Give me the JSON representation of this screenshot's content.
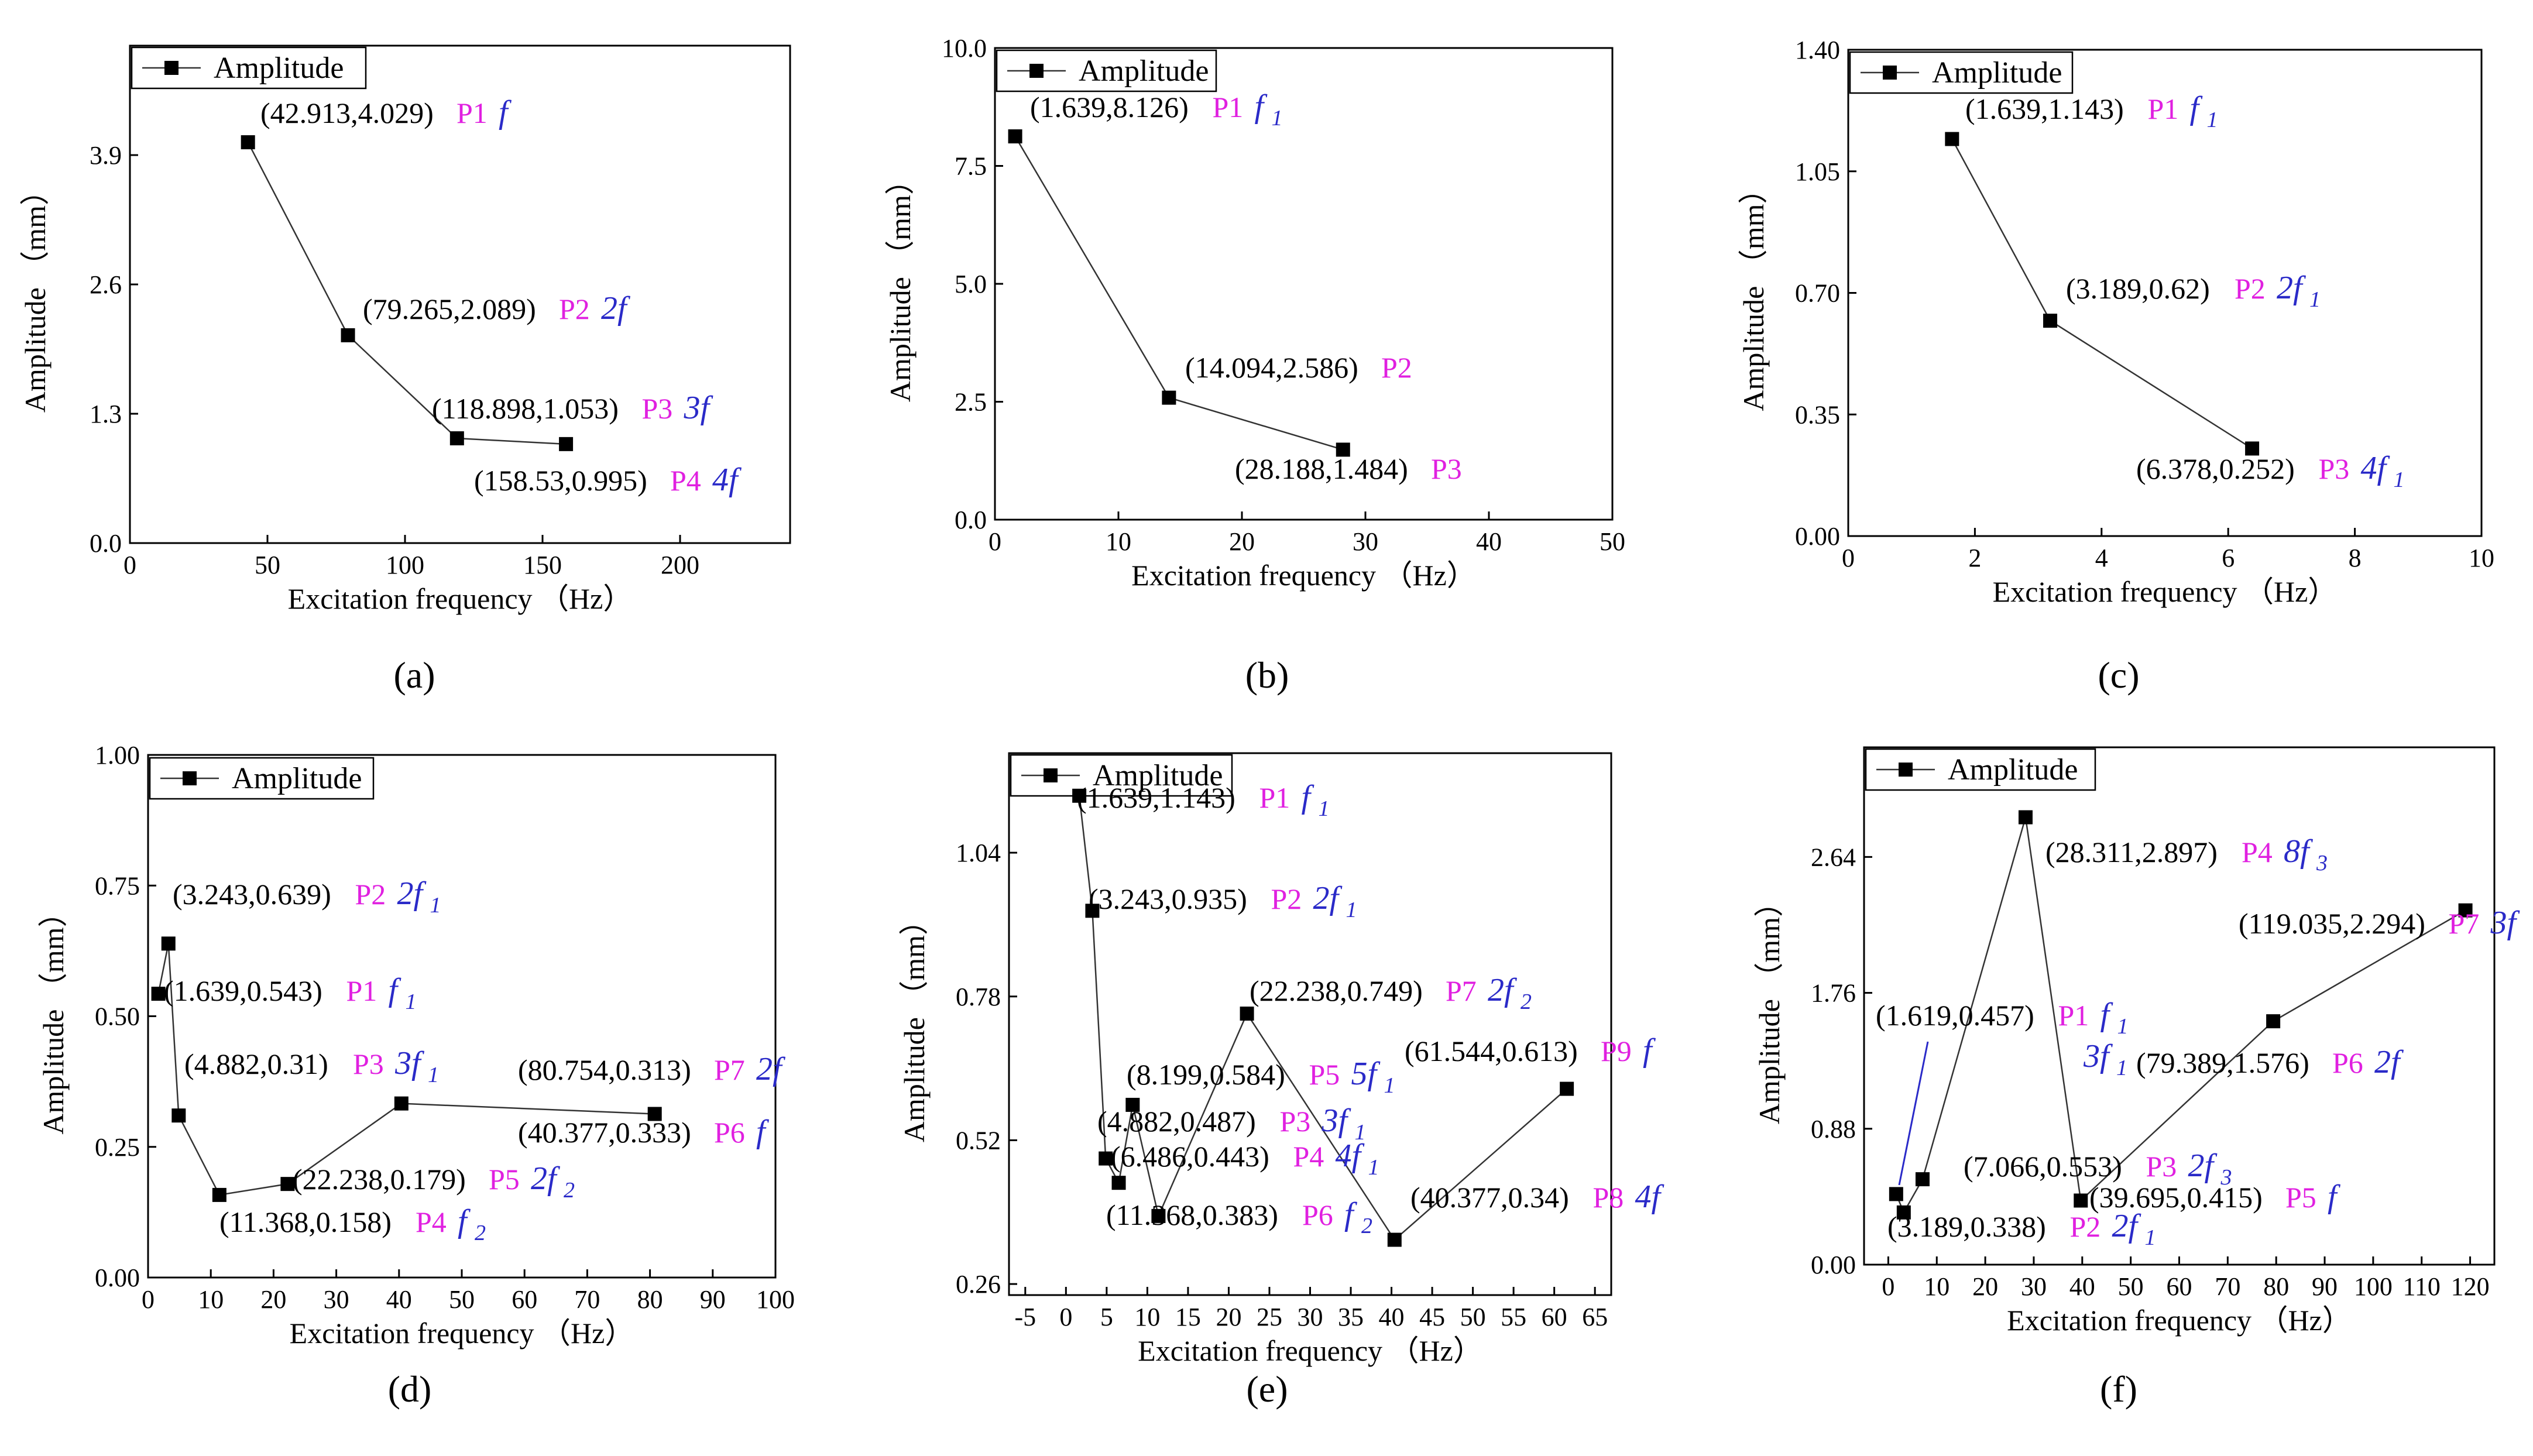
{
  "chart_data": [
    {
      "type": "line",
      "panel": "a",
      "caption": "(a)",
      "xlabel": "Excitation frequency （Hz）",
      "ylabel": "Amplitude （mm）",
      "xlim": [
        0,
        240
      ],
      "ylim": [
        0,
        5.0
      ],
      "xticks": [
        0,
        50,
        100,
        150,
        200
      ],
      "yticks": [
        0.0,
        1.3,
        2.6,
        3.9
      ],
      "xticklabels": [
        "0",
        "50",
        "100",
        "150",
        "200"
      ],
      "yticklabels": [
        "0.0",
        "1.3",
        "2.6",
        "3.9"
      ],
      "legend": "Amplitude",
      "series": [
        {
          "name": "Amplitude",
          "x": [
            42.913,
            79.265,
            118.898,
            158.53
          ],
          "y": [
            4.029,
            2.089,
            1.053,
            0.995
          ],
          "labels": [
            {
              "text": "(42.913,4.029)",
              "point": "P1",
              "freq": "f",
              "sub": ""
            },
            {
              "text": "(79.265,2.089)",
              "point": "P2",
              "freq": "2f",
              "sub": ""
            },
            {
              "text": "(118.898,1.053)",
              "point": "P3",
              "freq": "3f",
              "sub": ""
            },
            {
              "text": "(158.53,0.995)",
              "point": "P4",
              "freq": "4f",
              "sub": ""
            }
          ]
        }
      ]
    },
    {
      "type": "line",
      "panel": "b",
      "caption": "(b)",
      "xlabel": "Excitation frequency （Hz）",
      "ylabel": "Amplitude （mm）",
      "xlim": [
        0,
        50
      ],
      "ylim": [
        0,
        10.0
      ],
      "xticks": [
        0,
        10,
        20,
        30,
        40,
        50
      ],
      "yticks": [
        0.0,
        2.5,
        5.0,
        7.5,
        10.0
      ],
      "xticklabels": [
        "0",
        "10",
        "20",
        "30",
        "40",
        "50"
      ],
      "yticklabels": [
        "0.0",
        "2.5",
        "5.0",
        "7.5",
        "10.0"
      ],
      "legend": "Amplitude",
      "series": [
        {
          "name": "Amplitude",
          "x": [
            1.639,
            14.094,
            28.188
          ],
          "y": [
            8.126,
            2.586,
            1.484
          ],
          "labels": [
            {
              "text": "(1.639,8.126)",
              "point": "P1",
              "freq": "f",
              "sub": "1"
            },
            {
              "text": "(14.094,2.586)",
              "point": "P2",
              "freq": "",
              "sub": ""
            },
            {
              "text": "(28.188,1.484)",
              "point": "P3",
              "freq": "",
              "sub": ""
            }
          ]
        }
      ]
    },
    {
      "type": "line",
      "panel": "c",
      "caption": "(c)",
      "xlabel": "Excitation frequency （Hz）",
      "ylabel": "Amplitude （mm）",
      "xlim": [
        0,
        10
      ],
      "ylim": [
        0,
        1.4
      ],
      "xticks": [
        0,
        2,
        4,
        6,
        8,
        10
      ],
      "yticks": [
        0.0,
        0.35,
        0.7,
        1.05,
        1.4
      ],
      "xticklabels": [
        "0",
        "2",
        "4",
        "6",
        "8",
        "10"
      ],
      "yticklabels": [
        "0.00",
        "0.35",
        "0.70",
        "1.05",
        "1.40"
      ],
      "legend": "Amplitude",
      "series": [
        {
          "name": "Amplitude",
          "x": [
            1.639,
            3.189,
            6.378
          ],
          "y": [
            1.143,
            0.62,
            0.252
          ],
          "labels": [
            {
              "text": "(1.639,1.143)",
              "point": "P1",
              "freq": "f",
              "sub": "1"
            },
            {
              "text": "(3.189,0.62)",
              "point": "P2",
              "freq": "2f",
              "sub": "1"
            },
            {
              "text": "(6.378,0.252)",
              "point": "P3",
              "freq": "4f",
              "sub": "1"
            }
          ]
        }
      ]
    },
    {
      "type": "line",
      "panel": "d",
      "caption": "(d)",
      "xlabel": "Excitation frequency （Hz）",
      "ylabel": "Amplitude （mm）",
      "xlim": [
        0,
        100
      ],
      "ylim": [
        0,
        1.0
      ],
      "xticks": [
        0,
        10,
        20,
        30,
        40,
        50,
        60,
        70,
        80,
        90,
        100
      ],
      "yticks": [
        0.0,
        0.25,
        0.5,
        0.75,
        1.0
      ],
      "xticklabels": [
        "0",
        "10",
        "20",
        "30",
        "40",
        "50",
        "60",
        "70",
        "80",
        "90",
        "100"
      ],
      "yticklabels": [
        "0.00",
        "0.25",
        "0.50",
        "0.75",
        "1.00"
      ],
      "legend": "Amplitude",
      "series": [
        {
          "name": "Amplitude",
          "x": [
            1.639,
            3.243,
            4.882,
            11.368,
            22.238,
            40.377,
            80.754
          ],
          "y": [
            0.543,
            0.639,
            0.31,
            0.158,
            0.179,
            0.333,
            0.313
          ],
          "labels": [
            {
              "text": "(1.639,0.543)",
              "point": "P1",
              "freq": "f",
              "sub": "1"
            },
            {
              "text": "(3.243,0.639)",
              "point": "P2",
              "freq": "2f",
              "sub": "1"
            },
            {
              "text": "(4.882,0.31)",
              "point": "P3",
              "freq": "3f",
              "sub": "1"
            },
            {
              "text": "(11.368,0.158)",
              "point": "P4",
              "freq": "f",
              "sub": "2"
            },
            {
              "text": "(22.238,0.179)",
              "point": "P5",
              "freq": "2f",
              "sub": "2"
            },
            {
              "text": "(40.377,0.333)",
              "point": "P6",
              "freq": "f",
              "sub": ""
            },
            {
              "text": "(80.754,0.313)",
              "point": "P7",
              "freq": "2f",
              "sub": ""
            }
          ]
        }
      ]
    },
    {
      "type": "line",
      "panel": "e",
      "caption": "(e)",
      "xlabel": "Excitation frequency （Hz）",
      "ylabel": "Amplitude （mm）",
      "xlim": [
        -7,
        67
      ],
      "ylim": [
        0.24,
        1.22
      ],
      "xticks": [
        -5,
        0,
        5,
        10,
        15,
        20,
        25,
        30,
        35,
        40,
        45,
        50,
        55,
        60,
        65
      ],
      "yticks": [
        0.26,
        0.52,
        0.78,
        1.04
      ],
      "xticklabels": [
        "-5",
        "0",
        "5",
        "10",
        "15",
        "20",
        "25",
        "30",
        "35",
        "40",
        "45",
        "50",
        "55",
        "60",
        "65"
      ],
      "yticklabels": [
        "0.26",
        "0.52",
        "0.78",
        "1.04"
      ],
      "legend": "Amplitude",
      "series": [
        {
          "name": "Amplitude",
          "x": [
            1.639,
            3.243,
            4.882,
            6.486,
            8.199,
            11.368,
            22.238,
            40.377,
            61.544
          ],
          "y": [
            1.143,
            0.935,
            0.487,
            0.443,
            0.584,
            0.383,
            0.749,
            0.34,
            0.613
          ],
          "labels": [
            {
              "text": "(1.639,1.143)",
              "point": "P1",
              "freq": "f",
              "sub": "1"
            },
            {
              "text": "(3.243,0.935)",
              "point": "P2",
              "freq": "2f",
              "sub": "1"
            },
            {
              "text": "(4.882,0.487)",
              "point": "P3",
              "freq": "3f",
              "sub": "1"
            },
            {
              "text": "(6.486,0.443)",
              "point": "P4",
              "freq": "4f",
              "sub": "1"
            },
            {
              "text": "(8.199,0.584)",
              "point": "P5",
              "freq": "5f",
              "sub": "1"
            },
            {
              "text": "(11.368,0.383)",
              "point": "P6",
              "freq": "f",
              "sub": "2"
            },
            {
              "text": "(22.238,0.749)",
              "point": "P7",
              "freq": "2f",
              "sub": "2"
            },
            {
              "text": "(40.377,0.34)",
              "point": "P8",
              "freq": "4f",
              "sub": ""
            },
            {
              "text": "(61.544,0.613)",
              "point": "P9",
              "freq": "f",
              "sub": ""
            }
          ]
        }
      ]
    },
    {
      "type": "line",
      "panel": "f",
      "caption": "(f)",
      "xlabel": "Excitation frequency （Hz）",
      "ylabel": "Amplitude （mm）",
      "xlim": [
        -5,
        125
      ],
      "ylim": [
        0,
        3.35
      ],
      "xticks": [
        0,
        10,
        20,
        30,
        40,
        50,
        60,
        70,
        80,
        90,
        100,
        110,
        120
      ],
      "yticks": [
        0.0,
        0.88,
        1.76,
        2.64
      ],
      "xticklabels": [
        "0",
        "10",
        "20",
        "30",
        "40",
        "50",
        "60",
        "70",
        "80",
        "90",
        "100",
        "110",
        "120"
      ],
      "yticklabels": [
        "0.00",
        "0.88",
        "1.76",
        "2.64"
      ],
      "legend": "Amplitude",
      "series": [
        {
          "name": "Amplitude",
          "x": [
            1.619,
            3.189,
            7.066,
            28.311,
            39.695,
            79.389,
            119.035
          ],
          "y": [
            0.457,
            0.338,
            0.553,
            2.897,
            0.415,
            1.576,
            2.294
          ],
          "labels": [
            {
              "text": "(1.619,0.457)",
              "point": "P1",
              "freq": "f",
              "sub": "1"
            },
            {
              "text": "(3.189,0.338)",
              "point": "P2",
              "freq": "2f",
              "sub": "1"
            },
            {
              "text": "(7.066,0.553)",
              "point": "P3",
              "freq": "2f",
              "sub": "3"
            },
            {
              "text": "(28.311,2.897)",
              "point": "P4",
              "freq": "8f",
              "sub": "3"
            },
            {
              "text": "(39.695,0.415)",
              "point": "P5",
              "freq": "f",
              "sub": ""
            },
            {
              "text": "(79.389,1.576)",
              "point": "P6",
              "freq": "2f",
              "sub": ""
            },
            {
              "text": "(119.035,2.294)",
              "point": "P7",
              "freq": "3f",
              "sub": ""
            }
          ],
          "extra_text": [
            {
              "freq": "3f",
              "sub": "1"
            }
          ]
        }
      ]
    }
  ]
}
